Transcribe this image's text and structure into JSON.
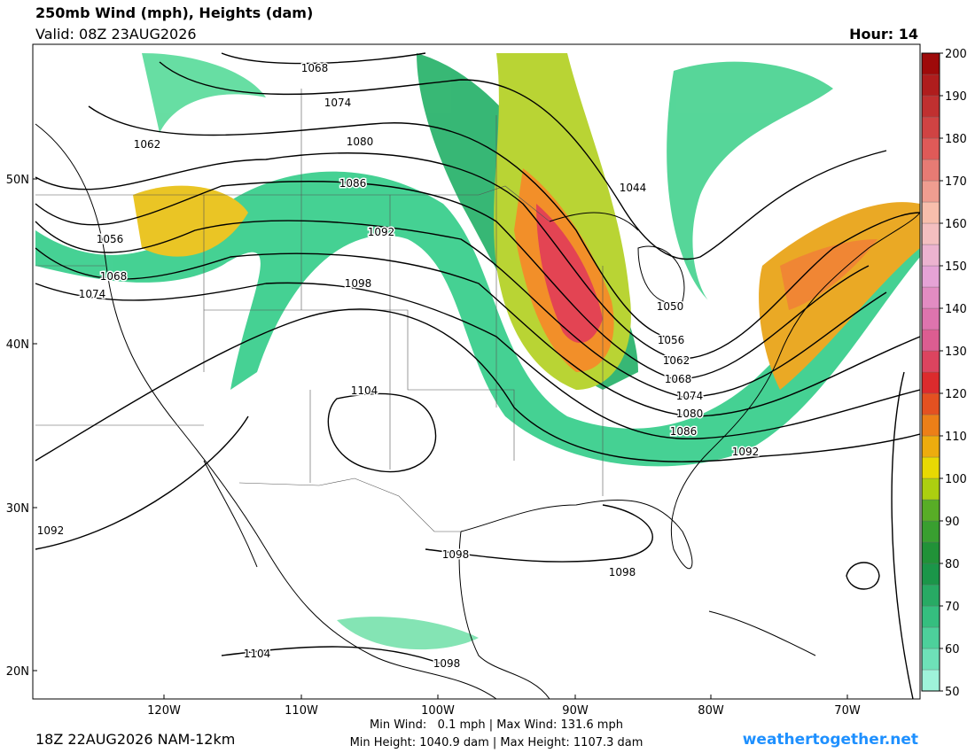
{
  "header": {
    "title": "250mb Wind (mph), Heights (dam)",
    "valid": "Valid: 08Z 23AUG2026",
    "hour": "Hour: 14"
  },
  "colorbar": {
    "ticks": [
      50,
      60,
      70,
      80,
      90,
      100,
      110,
      120,
      130,
      140,
      150,
      160,
      170,
      180,
      190,
      200
    ]
  },
  "map": {
    "lat_labels": [
      "50N",
      "40N",
      "30N",
      "20N"
    ],
    "lon_labels": [
      "120W",
      "110W",
      "100W",
      "90W",
      "80W",
      "70W"
    ],
    "contour_labels": [
      1068,
      1074,
      1062,
      1080,
      1086,
      1092,
      1098,
      1056,
      1068,
      1074,
      1044,
      1050,
      1056,
      1062,
      1068,
      1074,
      1080,
      1086,
      1092,
      1104,
      1092,
      1098,
      1098,
      1104,
      1098
    ]
  },
  "footer": {
    "run": "18Z 22AUG2026 NAM-12km",
    "wind": "Min Wind:   0.1 mph | Max Wind: 131.6 mph",
    "height": "Min Height: 1040.9 dam | Max Height: 1107.3 dam",
    "site": "weathertogether.net"
  }
}
